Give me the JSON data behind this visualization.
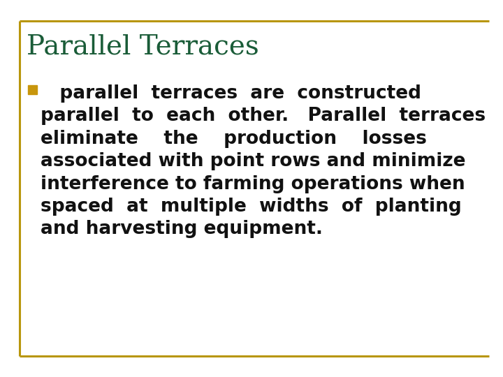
{
  "title": "Parallel Terraces",
  "title_color": "#1a5c38",
  "title_fontsize": 28,
  "border_color": "#b8960c",
  "bg_color": "#ffffff",
  "bullet_color": "#c8960c",
  "bullet_text_color": "#111111",
  "bullet_fontsize": 19.0,
  "bullet_lines": [
    "   parallel  terraces  are  constructed",
    "parallel  to  each  other.   Parallel  terraces",
    "eliminate    the    production    losses",
    "associated with point rows and minimize",
    "interference to farming operations when",
    "spaced  at  multiple  widths  of  planting",
    "and harvesting equipment."
  ]
}
